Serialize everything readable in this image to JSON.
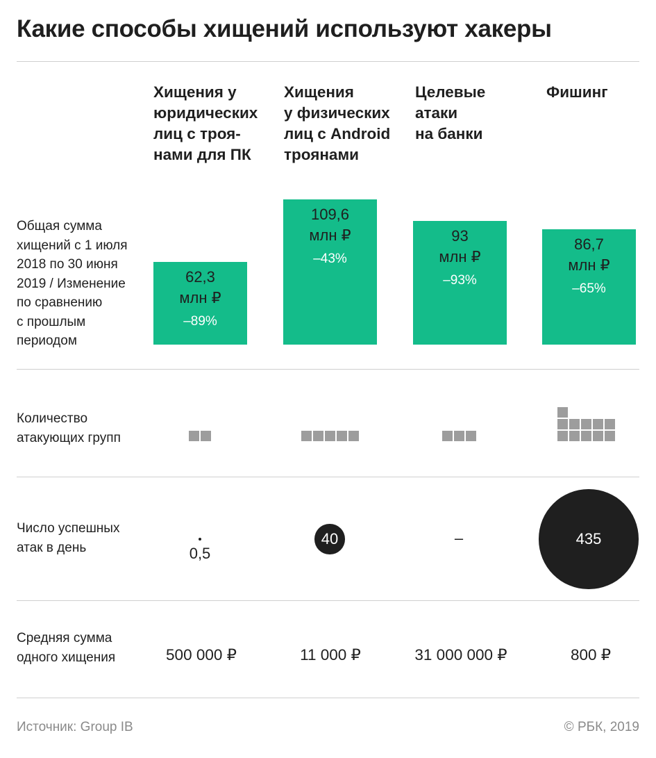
{
  "title": "Какие способы хищений используют хакеры",
  "columns": [
    "Хищения у\nюридических\nлиц с троя-\nнами для ПК",
    "Хищения\nу физических\nлиц с Android\nтроянами",
    "Целевые\nатаки\nна банки",
    "Фишинг"
  ],
  "row_labels": {
    "sum": "Общая сумма\nхищений с 1 июля\n2018 по 30 июня\n2019 / Изменение\nпо сравнению\nс прошлым\nпериодом",
    "groups": "Количество\nатакующих групп",
    "attacks": "Число успешных\nатак в день",
    "avg": "Средняя сумма\nодного хищения"
  },
  "colors": {
    "bar": "#14bc8a",
    "squares": "#9d9d9d",
    "circles": "#1f1f1f"
  },
  "chart_data": {
    "type": "table",
    "categories": [
      "Хищения у юридических лиц с троянами для ПК",
      "Хищения у физических лиц с Android троянами",
      "Целевые атаки на банки",
      "Фишинг"
    ],
    "total_sum": {
      "values": [
        62.3,
        109.6,
        93,
        86.7
      ],
      "labels": [
        "62,3",
        "109,6",
        "93",
        "86,7"
      ],
      "unit": "млн ₽",
      "change_labels": [
        "–89%",
        "–43%",
        "–93%",
        "–65%"
      ]
    },
    "attacking_groups": {
      "values": [
        2,
        5,
        3,
        11
      ]
    },
    "attacks_per_day": {
      "values": [
        0.5,
        40,
        null,
        435
      ],
      "labels": [
        "0,5",
        "40",
        "–",
        "435"
      ]
    },
    "avg_theft": {
      "values": [
        500000,
        11000,
        31000000,
        800
      ],
      "labels": [
        "500 000 ₽",
        "11 000 ₽",
        "31 000 000 ₽",
        "800 ₽"
      ]
    }
  },
  "footer": {
    "source": "Источник: Group IB",
    "copyright": "© РБК, 2019"
  }
}
